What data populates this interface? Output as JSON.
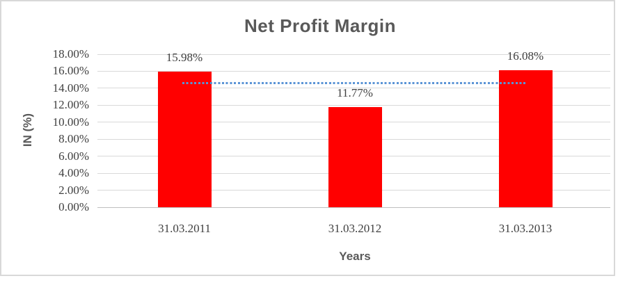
{
  "frame": {
    "background": "#ffffff",
    "border_color": "#d8d8d8"
  },
  "chart_data": {
    "type": "bar",
    "title": "Net Profit Margin",
    "xlabel": "Years",
    "ylabel": "IN (%)",
    "categories": [
      "31.03.2011",
      "31.03.2012",
      "31.03.2013"
    ],
    "series": [
      {
        "name": "Net Profit Margin",
        "values": [
          15.98,
          11.77,
          16.08
        ],
        "color": "#ff0000"
      }
    ],
    "data_labels": [
      "15.98%",
      "11.77%",
      "16.08%"
    ],
    "ylim": [
      0,
      18
    ],
    "ytick_step": 2,
    "ytick_labels": [
      "0.00%",
      "2.00%",
      "4.00%",
      "6.00%",
      "8.00%",
      "10.00%",
      "12.00%",
      "14.00%",
      "16.00%",
      "18.00%"
    ],
    "grid": true,
    "legend": "none",
    "trendline": {
      "style": "dotted",
      "color": "#5b94d6",
      "value": 14.61,
      "from_category": 0,
      "to_category": 2
    },
    "colors": {
      "title_text": "#595959",
      "axis_title_text": "#595959",
      "tick_text": "#404040",
      "gridline": "#d9d9d9",
      "axis_line": "#bfbfbf"
    }
  }
}
